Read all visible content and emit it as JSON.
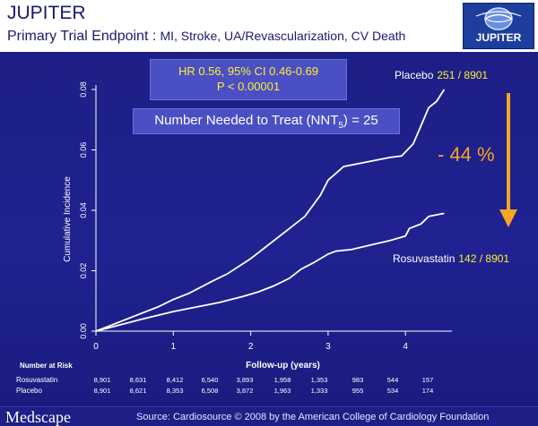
{
  "header": {
    "title": "JUPITER",
    "subtitle_lead": "Primary Trial Endpoint :",
    "subtitle_rest": "MI, Stroke, UA/Revascularization, CV Death",
    "logo_text": "JUPITER"
  },
  "stats": {
    "hr_line1": "HR 0.56, 95% CI 0.46-0.69",
    "hr_line2": "P < 0.00001",
    "nnt_prefix": "Number Needed to Treat (NNT",
    "nnt_sub": "5",
    "nnt_suffix": ") = 25",
    "reduction": "- 44 %"
  },
  "footer": {
    "brand": "Medscape",
    "source": "Source: Cardiosource © 2008 by the American College of Cardiology Foundation"
  },
  "colors": {
    "background": "#1d1f86",
    "curves": "#ffffff",
    "annotation_box": "#4b4fc4",
    "highlight_yellow": "#ffee33",
    "arrow_orange": "#f5a623"
  },
  "chart_data": {
    "type": "line",
    "xlabel": "Follow-up (years)",
    "ylabel": "Cumulative Incidence",
    "xlim": [
      0,
      4.6
    ],
    "ylim": [
      0,
      0.08
    ],
    "x_ticks": [
      0,
      1,
      2,
      3,
      4
    ],
    "y_ticks": [
      "0.00",
      "0.02",
      "0.04",
      "0.06",
      "0.08"
    ],
    "series": [
      {
        "name": "Placebo",
        "label_name": "Placebo",
        "label_count": "251 / 8901",
        "points": [
          [
            0,
            0
          ],
          [
            0.2,
            0.002
          ],
          [
            0.5,
            0.005
          ],
          [
            0.8,
            0.008
          ],
          [
            1.0,
            0.0105
          ],
          [
            1.2,
            0.0125
          ],
          [
            1.5,
            0.0165
          ],
          [
            1.7,
            0.019
          ],
          [
            2.0,
            0.024
          ],
          [
            2.2,
            0.028
          ],
          [
            2.5,
            0.034
          ],
          [
            2.7,
            0.038
          ],
          [
            2.9,
            0.045
          ],
          [
            3.0,
            0.05
          ],
          [
            3.2,
            0.0545
          ],
          [
            3.5,
            0.056
          ],
          [
            3.8,
            0.0575
          ],
          [
            3.95,
            0.058
          ],
          [
            4.1,
            0.062
          ],
          [
            4.2,
            0.068
          ],
          [
            4.3,
            0.074
          ],
          [
            4.4,
            0.076
          ],
          [
            4.5,
            0.08
          ]
        ]
      },
      {
        "name": "Rosuvastatin",
        "label_name": "Rosuvastatin",
        "label_count": "142 / 8901",
        "points": [
          [
            0,
            0
          ],
          [
            0.3,
            0.002
          ],
          [
            0.6,
            0.004
          ],
          [
            1.0,
            0.0065
          ],
          [
            1.3,
            0.008
          ],
          [
            1.6,
            0.0095
          ],
          [
            1.9,
            0.0115
          ],
          [
            2.1,
            0.013
          ],
          [
            2.3,
            0.015
          ],
          [
            2.5,
            0.0175
          ],
          [
            2.65,
            0.0205
          ],
          [
            2.8,
            0.0225
          ],
          [
            3.0,
            0.0255
          ],
          [
            3.1,
            0.0265
          ],
          [
            3.3,
            0.027
          ],
          [
            3.55,
            0.0285
          ],
          [
            3.8,
            0.03
          ],
          [
            4.0,
            0.0315
          ],
          [
            4.05,
            0.034
          ],
          [
            4.2,
            0.0355
          ],
          [
            4.3,
            0.038
          ],
          [
            4.5,
            0.039
          ]
        ]
      }
    ]
  },
  "risk_table": {
    "heading": "Number at Risk",
    "rows": [
      {
        "label": "Rosuvastatin",
        "values": [
          "8,901",
          "8,631",
          "8,412",
          "6,540",
          "3,893",
          "1,958",
          "1,353",
          "983",
          "544",
          "157"
        ]
      },
      {
        "label": "Placebo",
        "values": [
          "8,901",
          "8,621",
          "8,353",
          "6,508",
          "3,872",
          "1,963",
          "1,333",
          "955",
          "534",
          "174"
        ]
      }
    ]
  }
}
